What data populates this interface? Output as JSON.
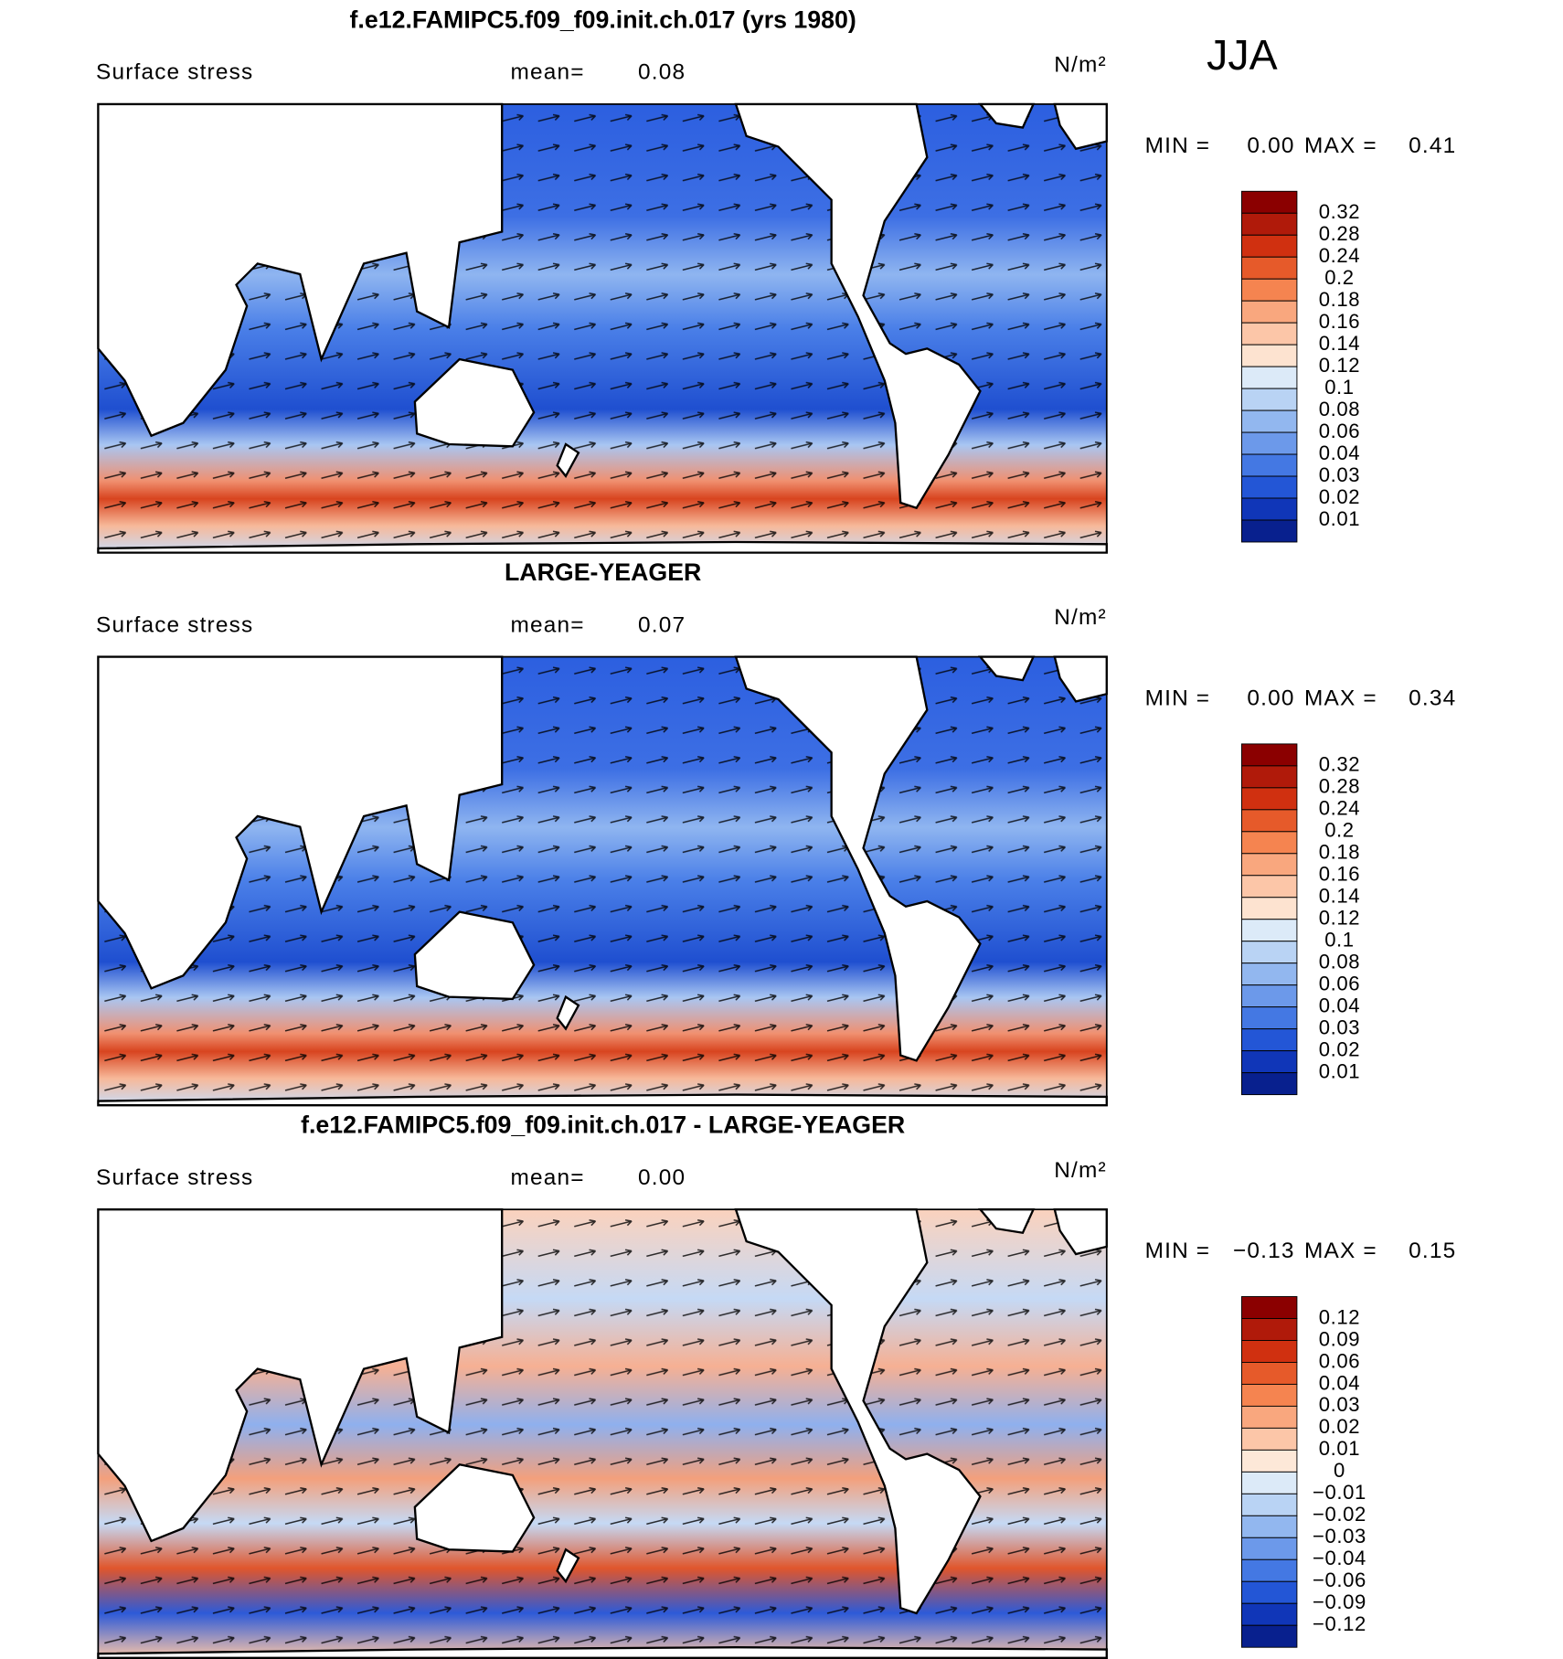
{
  "figure": {
    "season": "JJA",
    "panels": [
      {
        "title": "f.e12.FAMIPC5.f09_f09.init.ch.017 (yrs 1980)",
        "variable": "Surface stress",
        "mean_label": "mean=",
        "mean": 0.08,
        "units": "N/m²",
        "min_label": "MIN =",
        "min": {
          "value": 0,
          "label": "0.00"
        },
        "max_label": "MAX =",
        "max": 0.41,
        "colorbar": {
          "levels": [
            0.32,
            0.28,
            0.24,
            0.2,
            0.18,
            0.16,
            0.14,
            0.12,
            0.1,
            0.08,
            0.06,
            0.04,
            0.03,
            0.02,
            0.01
          ],
          "colors": [
            "#8b0000",
            "#b01a0a",
            "#d03010",
            "#e65a2a",
            "#f58450",
            "#f9a77e",
            "#fcc6a8",
            "#fde3d0",
            "#dceaf8",
            "#b9d3f4",
            "#92b7ef",
            "#6c99ea",
            "#4478e3",
            "#2356d6",
            "#1036b8",
            "#08208e"
          ]
        }
      },
      {
        "title": "LARGE-YEAGER",
        "variable": "Surface stress",
        "mean_label": "mean=",
        "mean": 0.07,
        "units": "N/m²",
        "min_label": "MIN =",
        "min": {
          "value": 0,
          "label": "0.00"
        },
        "max_label": "MAX =",
        "max": 0.34,
        "colorbar": {
          "levels": [
            0.32,
            0.28,
            0.24,
            0.2,
            0.18,
            0.16,
            0.14,
            0.12,
            0.1,
            0.08,
            0.06,
            0.04,
            0.03,
            0.02,
            0.01
          ],
          "colors": [
            "#8b0000",
            "#b01a0a",
            "#d03010",
            "#e65a2a",
            "#f58450",
            "#f9a77e",
            "#fcc6a8",
            "#fde3d0",
            "#dceaf8",
            "#b9d3f4",
            "#92b7ef",
            "#6c99ea",
            "#4478e3",
            "#2356d6",
            "#1036b8",
            "#08208e"
          ]
        }
      },
      {
        "title": "f.e12.FAMIPC5.f09_f09.init.ch.017 - LARGE-YEAGER",
        "variable": "Surface stress",
        "mean_label": "mean=",
        "mean": {
          "value": 0,
          "label": "0.00"
        },
        "units": "N/m²",
        "min_label": "MIN =",
        "min": {
          "value": -0.13,
          "label": "−0.13"
        },
        "max_label": "MAX =",
        "max": 0.15,
        "colorbar": {
          "levels": [
            0.12,
            0.09,
            0.06,
            0.04,
            0.03,
            0.02,
            0.01,
            0,
            {
              "value": -0.01,
              "label": "−0.01"
            },
            {
              "value": -0.02,
              "label": "−0.02"
            },
            {
              "value": -0.03,
              "label": "−0.03"
            },
            {
              "value": -0.04,
              "label": "−0.04"
            },
            {
              "value": -0.06,
              "label": "−0.06"
            },
            {
              "value": -0.09,
              "label": "−0.09"
            },
            {
              "value": -0.12,
              "label": "−0.12"
            }
          ],
          "colors": [
            "#8b0000",
            "#b01a0a",
            "#d03010",
            "#e65a2a",
            "#f58450",
            "#f9a77e",
            "#fcc6a8",
            "#fde8d8",
            "#dceaf8",
            "#b9d3f4",
            "#92b7ef",
            "#6c99ea",
            "#4478e3",
            "#2356d6",
            "#1036b8",
            "#08208e"
          ]
        }
      }
    ]
  }
}
